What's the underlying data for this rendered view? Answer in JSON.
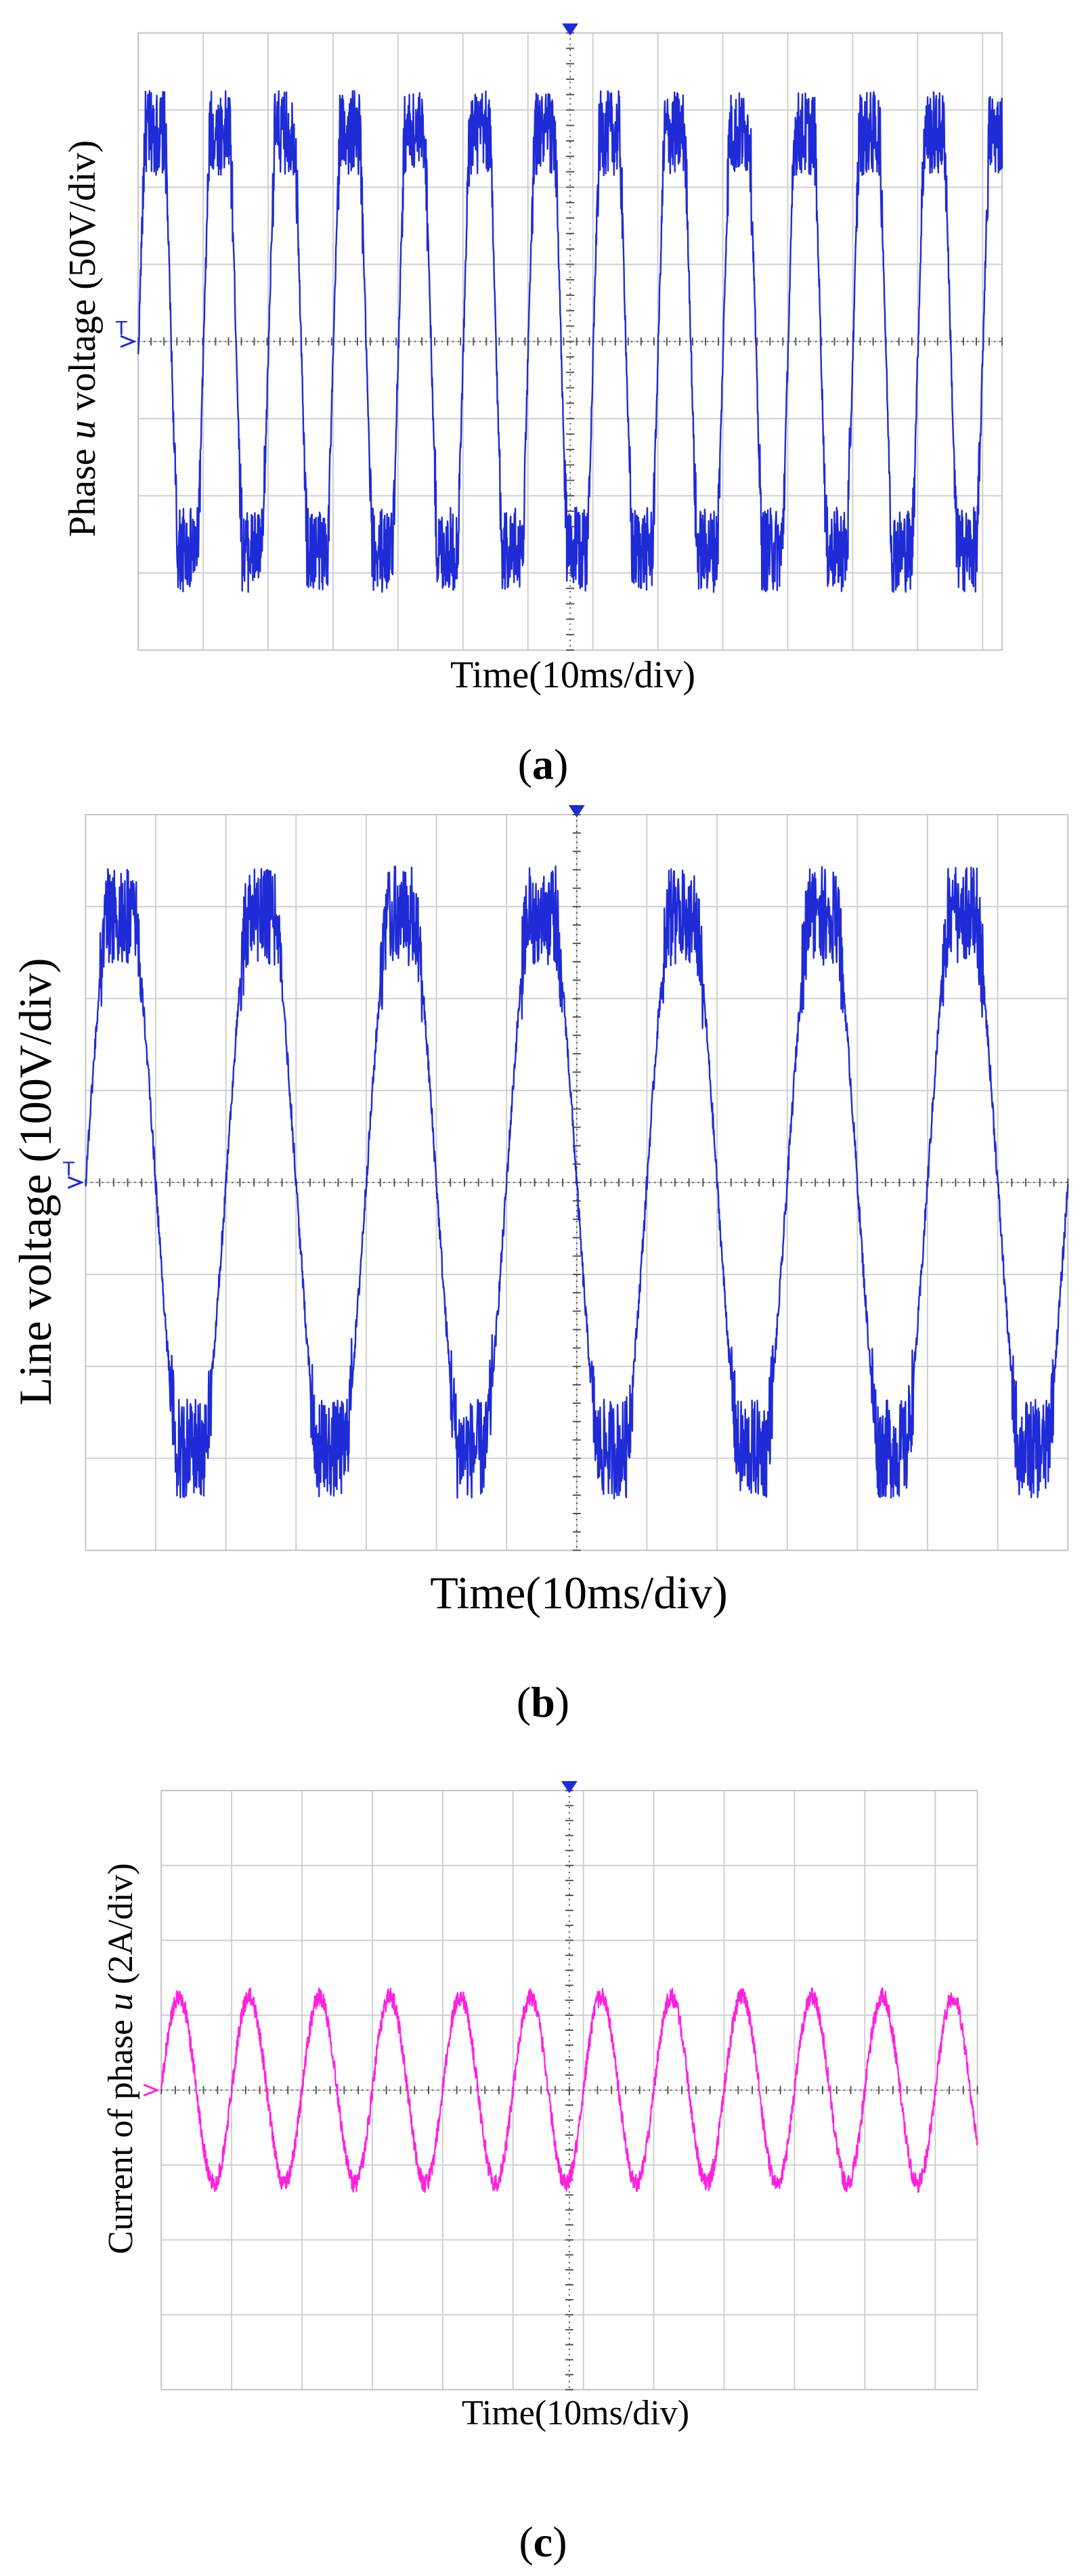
{
  "chart_data": [
    {
      "type": "line",
      "id": "a",
      "ylabel_prefix": "Phase ",
      "ylabel_var": "u",
      "ylabel_suffix": " voltage (50V/div)",
      "xlabel": "Time(10ms/div)",
      "caption": "a",
      "color": "#1f2bd6",
      "signal": "multilevel-voltage",
      "amplitude_div": 2.7,
      "ripple_div": 0.55,
      "period_div": 1.0,
      "phase_div": 0.0,
      "start_phase_offset": -0.05,
      "xlim": [
        0,
        13.3
      ],
      "ylim": [
        -4,
        4
      ],
      "grid_x_divs": 13.3,
      "grid_y_divs": 8,
      "trigger_glyph": "T"
    },
    {
      "type": "line",
      "id": "b",
      "ylabel": "Line voltage (100V/div)",
      "xlabel": "Time(10ms/div)",
      "caption": "b",
      "color": "#1f2bd6",
      "signal": "line-voltage",
      "amplitude_div": 2.9,
      "ripple_div": 0.45,
      "period_div": 2.0,
      "phase_div": 0.0,
      "xlim": [
        0,
        14
      ],
      "ylim": [
        -4,
        4
      ],
      "grid_x_divs": 14,
      "grid_y_divs": 8,
      "trigger_glyph": "T"
    },
    {
      "type": "line",
      "id": "c",
      "ylabel_prefix": "Current of phase ",
      "ylabel_var": "u",
      "ylabel_suffix": " (2A/div)",
      "xlabel": "Time(10ms/div)",
      "caption": "c",
      "color": "#ff22dd",
      "signal": "sine-current",
      "amplitude_div": 1.25,
      "ripple_div": 0.12,
      "period_div": 1.0,
      "phase_div": 0.0,
      "xlim": [
        0,
        11.6
      ],
      "ylim": [
        -4,
        4
      ],
      "grid_x_divs": 11.6,
      "grid_y_divs": 8
    }
  ]
}
